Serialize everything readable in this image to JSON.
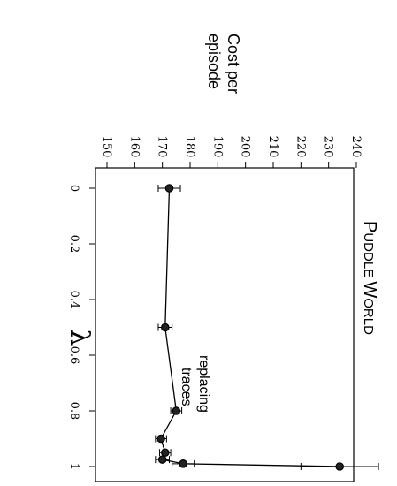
{
  "chart_data": {
    "type": "line",
    "title": "Puddle World",
    "title_parts": {
      "p_big": "P",
      "p_small": "UDDLE ",
      "w_big": "W",
      "w_small": "ORLD"
    },
    "xlabel": "λ",
    "ylabel": [
      "Cost per",
      "episode"
    ],
    "annotation": [
      "replacing",
      "traces"
    ],
    "xlim": [
      0,
      1
    ],
    "ylim": [
      150,
      240
    ],
    "xticks": [
      0,
      0.2,
      0.4,
      0.6,
      0.8,
      1
    ],
    "xtick_labels": [
      "0",
      "0.2",
      "0.4",
      "0.6",
      "0.8",
      "1"
    ],
    "yticks": [
      150,
      160,
      170,
      180,
      190,
      200,
      210,
      220,
      230,
      240
    ],
    "ytick_labels": [
      "150",
      "160",
      "170",
      "180",
      "190",
      "200",
      "210",
      "220",
      "230",
      "240"
    ],
    "series": [
      {
        "x": [
          0,
          0.5,
          0.8,
          0.9,
          0.95,
          0.975,
          0.99,
          1
        ],
        "y": [
          172.5,
          171,
          175,
          169.5,
          171,
          170,
          177.5,
          234
        ],
        "err": [
          4,
          2.5,
          2,
          2,
          2,
          2.5,
          4,
          14
        ]
      }
    ],
    "grid": false,
    "orientation": "rotated 90 degrees clockwise"
  }
}
